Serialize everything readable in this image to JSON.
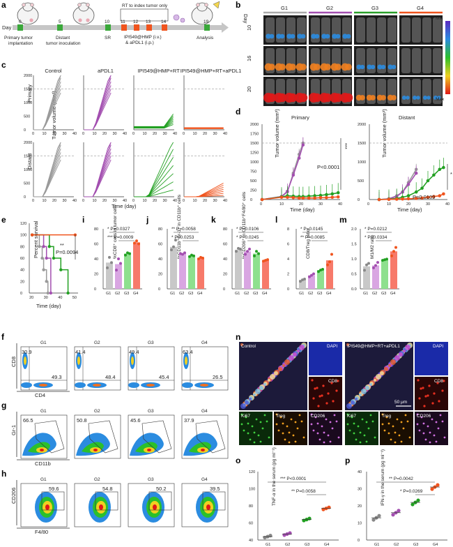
{
  "panel_labels": {
    "a": "a",
    "b": "b",
    "c": "c",
    "d": "d",
    "e": "e",
    "f": "f",
    "g": "g",
    "h": "h",
    "i": "i",
    "j": "j",
    "k": "k",
    "l": "l",
    "m": "m",
    "n": "n",
    "o": "o",
    "p": "p"
  },
  "panel_a": {
    "day_label": "Day",
    "days": [
      "0",
      "5",
      "10",
      "11",
      "12",
      "13",
      "14",
      "19"
    ],
    "events": {
      "primary": "Primary tumor\nimplantation",
      "distant": "Distant\ntumor inoculation",
      "sr": "SR",
      "rt": "RT to index tumor only",
      "drug1": "IPI549@HMP (i.v.)",
      "drug2": "& aPDL1 (i.p.)",
      "analysis": "Analysis"
    }
  },
  "panel_b": {
    "groups": [
      "G1",
      "G2",
      "G3",
      "G4"
    ],
    "group_colors": [
      "#aaaaaa",
      "#a34fb0",
      "#2aa02a",
      "#f0541e"
    ],
    "day_axis": "Day",
    "days": [
      "10",
      "16",
      "20"
    ],
    "scale_min": "Min",
    "scale_max": "Max"
  },
  "panel_c": {
    "titles": [
      "Control",
      "aPDL1",
      "IPI549@HMP+RT",
      "IPI549@HMP+RT+aPDL1"
    ],
    "rows": [
      "Primary",
      "Distant"
    ],
    "ylabel": "Tumor volume (mm³)",
    "xlabel": "Time (day)",
    "yticks": [
      "0",
      "500",
      "1000",
      "1500",
      "2000"
    ],
    "xticks": [
      "0",
      "10",
      "20",
      "30",
      "40"
    ],
    "colors": [
      "#9a9a9a",
      "#a34fb0",
      "#22a022",
      "#f0541e"
    ],
    "threshold": 1500
  },
  "panel_d": {
    "titles": [
      "Primary",
      "Distant"
    ],
    "ylabel": "Tumor volume (mm³)",
    "xlabel": "Time (day)",
    "yticks": [
      "0",
      "250",
      "500",
      "750",
      "1000",
      "1250",
      "1500",
      "1750",
      "2000"
    ],
    "xticks": [
      "0",
      "10",
      "20",
      "30",
      "40"
    ],
    "primary_p": "P<0.0001",
    "primary_star": "***",
    "distant_p": "P=0.0109",
    "distant_star": "*"
  },
  "panel_e": {
    "ylabel": "Percent survival",
    "xlabel": "Time (day)",
    "yticks": [
      "0",
      "20",
      "40",
      "60",
      "80",
      "100",
      "120"
    ],
    "xticks": [
      "20",
      "30",
      "40",
      "50"
    ],
    "p": "P=0.0094",
    "star": "**"
  },
  "bar_panels": [
    {
      "id": "i",
      "ylabel": "%CD8⁺ cells in tumor cells",
      "yticks": [
        "0",
        "20",
        "40",
        "60",
        "80"
      ],
      "ymax": 80,
      "values": [
        35,
        33,
        47,
        62
      ],
      "dots": [
        [
          28,
          42,
          35
        ],
        [
          25,
          40,
          34
        ],
        [
          45,
          48,
          47
        ],
        [
          61,
          64,
          60
        ]
      ],
      "sig": [
        {
          "text": "* P=0.0327"
        },
        {
          "text": "*** P=0.0009"
        }
      ]
    },
    {
      "id": "j",
      "ylabel": "%CD11b⁺Gr-1⁺ in CD11b⁺ cells",
      "yticks": [
        "0",
        "20",
        "40",
        "60",
        "80"
      ],
      "ymax": 80,
      "values": [
        56,
        47,
        44,
        41
      ],
      "dots": [
        [
          52,
          56,
          65
        ],
        [
          47,
          46,
          48
        ],
        [
          43,
          45,
          44
        ],
        [
          40,
          42,
          41
        ]
      ],
      "sig": [
        {
          "text": "** P=0.0058"
        },
        {
          "text": "* P=0.0253"
        }
      ]
    },
    {
      "id": "k",
      "ylabel": "%CD206⁺ in CD11b⁺F4/80⁺ cells",
      "yticks": [
        "0",
        "20",
        "40",
        "60",
        "80"
      ],
      "ymax": 80,
      "values": [
        52,
        50,
        47,
        38
      ],
      "dots": [
        [
          50,
          54,
          53
        ],
        [
          46,
          50,
          53
        ],
        [
          44,
          50,
          47
        ],
        [
          37,
          38,
          39
        ]
      ],
      "sig": [
        {
          "text": "* P=0.0106"
        },
        {
          "text": "* P=0.0245"
        }
      ]
    },
    {
      "id": "l",
      "ylabel": "CD8/Treg ratio",
      "yticks": [
        "0",
        "2",
        "4",
        "6",
        "8"
      ],
      "ymax": 8,
      "values": [
        1.2,
        1.8,
        2.5,
        3.8
      ],
      "dots": [
        [
          1.0,
          1.2,
          1.3
        ],
        [
          1.6,
          1.8,
          2.0
        ],
        [
          2.3,
          2.5,
          2.6
        ],
        [
          3.2,
          3.6,
          4.6
        ]
      ],
      "sig": [
        {
          "text": "* P=0.0145"
        },
        {
          "text": "** P=0.0085"
        }
      ]
    },
    {
      "id": "m",
      "ylabel": "M1/M2 ratio",
      "yticks": [
        "0.0",
        "0.5",
        "1.0",
        "1.5",
        "2.0"
      ],
      "ymax": 2.0,
      "values": [
        0.75,
        0.78,
        0.97,
        1.25
      ],
      "dots": [
        [
          0.62,
          0.8,
          0.85
        ],
        [
          0.7,
          0.78,
          0.88
        ],
        [
          0.95,
          0.97,
          0.99
        ],
        [
          1.1,
          1.25,
          1.38
        ]
      ],
      "sig": [
        {
          "text": "* P=0.0212"
        },
        {
          "text": "* P=0.0334"
        }
      ]
    }
  ],
  "groups": [
    "G1",
    "G2",
    "G3",
    "G4"
  ],
  "bar_colors": [
    "#c8c8c8",
    "#d9a6e2",
    "#8ee08e",
    "#f77a6a"
  ],
  "panel_f": {
    "ylabel": "CD8",
    "xlabel": "CD4",
    "tl": [
      "30.9",
      "41.4",
      "49.4",
      "63.4"
    ],
    "br": [
      "49.3",
      "48.4",
      "45.4",
      "26.5"
    ]
  },
  "panel_g": {
    "ylabel": "Gr-1",
    "xlabel": "CD11b",
    "values": [
      "66.5",
      "50.8",
      "45.6",
      "37.9"
    ]
  },
  "panel_h": {
    "ylabel": "CD206",
    "xlabel": "F4/80",
    "values": [
      "59.6",
      "54.8",
      "50.2",
      "39.5"
    ]
  },
  "panel_n": {
    "left_title": "Control",
    "right_title": "IPI549@HMP+RT+aPDL1",
    "tiles": [
      "DAPI",
      "CD8",
      "Ki67",
      "Treg",
      "CD206"
    ],
    "scale": "50 μm"
  },
  "panel_o": {
    "ylabel": "TNF-α in the serum (pg ml⁻¹)",
    "yticks": [
      "40",
      "60",
      "80",
      "100",
      "120"
    ],
    "values": [
      44,
      47,
      64,
      77
    ],
    "sig": [
      "*** P<0.0001",
      "** P=0.0058"
    ]
  },
  "panel_p": {
    "ylabel": "IFN-γ in the serum (pg ml⁻¹)",
    "yticks": [
      "0",
      "10",
      "20",
      "30",
      "40"
    ],
    "values": [
      13,
      16,
      22,
      31
    ],
    "sig": [
      "** P=0.0042",
      "* P=0.0269"
    ]
  },
  "chart_data": [
    {
      "type": "line",
      "id": "d-primary",
      "title": "Primary",
      "xlabel": "Time (day)",
      "ylabel": "Tumor volume (mm³)",
      "xlim": [
        0,
        40
      ],
      "ylim": [
        0,
        2000
      ],
      "x": [
        0,
        10,
        13,
        16,
        19,
        21,
        24,
        27,
        30,
        33,
        36,
        39
      ],
      "series": [
        {
          "color": "#9a9a9a",
          "values": [
            0,
            80,
            200,
            700,
            1200,
            1500,
            null,
            null,
            null,
            null,
            null,
            null
          ]
        },
        {
          "color": "#a34fb0",
          "values": [
            0,
            80,
            220,
            650,
            1100,
            1450,
            null,
            null,
            null,
            null,
            null,
            null
          ]
        },
        {
          "color": "#22a022",
          "values": [
            0,
            70,
            100,
            90,
            80,
            80,
            90,
            100,
            110,
            130,
            150,
            180
          ]
        },
        {
          "color": "#f0541e",
          "values": [
            0,
            60,
            60,
            50,
            40,
            40,
            40,
            40,
            50,
            50,
            60,
            70
          ]
        }
      ]
    },
    {
      "type": "line",
      "id": "d-distant",
      "title": "Distant",
      "xlabel": "Time (day)",
      "ylabel": "Tumor volume (mm³)",
      "xlim": [
        0,
        40
      ],
      "ylim": [
        0,
        2000
      ],
      "x": [
        5,
        10,
        14,
        17,
        20,
        24,
        27,
        30,
        33,
        36,
        38
      ],
      "series": [
        {
          "color": "#9a9a9a",
          "values": [
            0,
            20,
            100,
            200,
            450,
            800,
            null,
            null,
            null,
            null,
            null
          ]
        },
        {
          "color": "#a34fb0",
          "values": [
            0,
            20,
            80,
            200,
            400,
            700,
            null,
            null,
            null,
            null,
            null
          ]
        },
        {
          "color": "#22a022",
          "values": [
            0,
            10,
            30,
            60,
            100,
            200,
            300,
            500,
            650,
            800,
            850
          ]
        },
        {
          "color": "#f0541e",
          "values": [
            0,
            5,
            10,
            15,
            20,
            30,
            40,
            60,
            80,
            100,
            150
          ]
        }
      ]
    },
    {
      "type": "line",
      "id": "e",
      "ylabel": "Percent survival",
      "xlabel": "Time (day)",
      "xlim": [
        18,
        52
      ],
      "ylim": [
        0,
        120
      ],
      "series": [
        {
          "color": "#9a9a9a",
          "steps": [
            [
              20,
              100
            ],
            [
              25,
              80
            ],
            [
              27,
              60
            ],
            [
              28,
              40
            ],
            [
              30,
              20
            ],
            [
              31,
              0
            ]
          ]
        },
        {
          "color": "#a34fb0",
          "steps": [
            [
              20,
              100
            ],
            [
              28,
              80
            ],
            [
              30,
              60
            ],
            [
              33,
              0
            ]
          ]
        },
        {
          "color": "#22a022",
          "steps": [
            [
              20,
              100
            ],
            [
              32,
              80
            ],
            [
              35,
              60
            ],
            [
              40,
              40
            ],
            [
              45,
              0
            ]
          ]
        },
        {
          "color": "#f0541e",
          "steps": [
            [
              20,
              100
            ],
            [
              50,
              100
            ]
          ]
        }
      ]
    }
  ]
}
